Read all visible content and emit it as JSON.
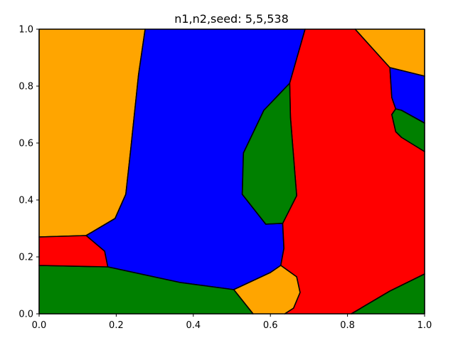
{
  "chart_data": {
    "type": "area",
    "title": "n1,n2,seed: 5,5,538",
    "xlabel": "",
    "ylabel": "",
    "xlim": [
      0,
      1
    ],
    "ylim": [
      0,
      1
    ],
    "grid": false,
    "x_ticks": [
      "0.0",
      "0.2",
      "0.4",
      "0.6",
      "0.8",
      "1.0"
    ],
    "y_ticks": [
      "0.0",
      "0.2",
      "0.4",
      "0.6",
      "0.8",
      "1.0"
    ],
    "colors": {
      "orange": "#FFA500",
      "blue": "#0000FF",
      "green": "#008000",
      "red": "#FF0000",
      "edge": "#000000"
    },
    "regions": [
      {
        "color": "orange",
        "points": [
          [
            0,
            1
          ],
          [
            0.275,
            1
          ],
          [
            0.258,
            0.84
          ],
          [
            0.237,
            0.57
          ],
          [
            0.225,
            0.42
          ],
          [
            0.197,
            0.335
          ],
          [
            0.122,
            0.275
          ],
          [
            0,
            0.27
          ]
        ]
      },
      {
        "color": "blue",
        "points": [
          [
            0.275,
            1
          ],
          [
            0.69,
            1
          ],
          [
            0.65,
            0.81
          ],
          [
            0.583,
            0.715
          ],
          [
            0.53,
            0.565
          ],
          [
            0.527,
            0.42
          ],
          [
            0.588,
            0.315
          ],
          [
            0.632,
            0.318
          ],
          [
            0.635,
            0.23
          ],
          [
            0.627,
            0.17
          ],
          [
            0.6,
            0.145
          ],
          [
            0.505,
            0.085
          ],
          [
            0.366,
            0.11
          ],
          [
            0.178,
            0.165
          ],
          [
            0.17,
            0.22
          ],
          [
            0.122,
            0.275
          ],
          [
            0.197,
            0.335
          ],
          [
            0.225,
            0.42
          ],
          [
            0.237,
            0.57
          ],
          [
            0.258,
            0.84
          ]
        ]
      },
      {
        "color": "red",
        "points": [
          [
            0.69,
            1
          ],
          [
            0.82,
            1
          ],
          [
            0.91,
            0.865
          ],
          [
            0.915,
            0.76
          ],
          [
            0.925,
            0.72
          ],
          [
            0.915,
            0.7
          ],
          [
            0.925,
            0.64
          ],
          [
            0.94,
            0.62
          ],
          [
            1,
            0.57
          ],
          [
            1,
            0.14
          ],
          [
            0.91,
            0.08
          ],
          [
            0.81,
            0
          ],
          [
            0.637,
            0
          ],
          [
            0.66,
            0.02
          ],
          [
            0.677,
            0.075
          ],
          [
            0.668,
            0.13
          ],
          [
            0.627,
            0.17
          ],
          [
            0.635,
            0.23
          ],
          [
            0.632,
            0.318
          ],
          [
            0.668,
            0.415
          ],
          [
            0.652,
            0.69
          ],
          [
            0.65,
            0.81
          ]
        ]
      },
      {
        "color": "green",
        "points": [
          [
            0.65,
            0.81
          ],
          [
            0.652,
            0.69
          ],
          [
            0.668,
            0.415
          ],
          [
            0.632,
            0.318
          ],
          [
            0.588,
            0.315
          ],
          [
            0.527,
            0.42
          ],
          [
            0.53,
            0.565
          ],
          [
            0.583,
            0.715
          ]
        ]
      },
      {
        "color": "orange",
        "points": [
          [
            0.505,
            0.085
          ],
          [
            0.6,
            0.145
          ],
          [
            0.627,
            0.17
          ],
          [
            0.668,
            0.13
          ],
          [
            0.677,
            0.075
          ],
          [
            0.66,
            0.02
          ],
          [
            0.637,
            0
          ],
          [
            0.555,
            0
          ]
        ]
      },
      {
        "color": "green",
        "points": [
          [
            0,
            0.17
          ],
          [
            0.178,
            0.165
          ],
          [
            0.366,
            0.11
          ],
          [
            0.505,
            0.085
          ],
          [
            0.555,
            0
          ],
          [
            0,
            0
          ]
        ]
      },
      {
        "color": "red",
        "points": [
          [
            0,
            0.27
          ],
          [
            0.122,
            0.275
          ],
          [
            0.17,
            0.22
          ],
          [
            0.178,
            0.165
          ],
          [
            0,
            0.17
          ]
        ]
      },
      {
        "color": "orange",
        "points": [
          [
            0.82,
            1
          ],
          [
            1,
            1
          ],
          [
            1,
            0.835
          ],
          [
            0.91,
            0.865
          ]
        ]
      },
      {
        "color": "blue",
        "points": [
          [
            0.91,
            0.865
          ],
          [
            1,
            0.835
          ],
          [
            1,
            0.67
          ],
          [
            0.94,
            0.715
          ],
          [
            0.925,
            0.72
          ],
          [
            0.915,
            0.76
          ]
        ]
      },
      {
        "color": "green",
        "points": [
          [
            0.915,
            0.7
          ],
          [
            0.925,
            0.72
          ],
          [
            0.94,
            0.715
          ],
          [
            1,
            0.67
          ],
          [
            1,
            0.57
          ],
          [
            0.94,
            0.62
          ],
          [
            0.925,
            0.64
          ]
        ]
      },
      {
        "color": "green",
        "points": [
          [
            0.81,
            0
          ],
          [
            1,
            0
          ],
          [
            1,
            0.14
          ],
          [
            0.91,
            0.08
          ]
        ]
      }
    ]
  }
}
